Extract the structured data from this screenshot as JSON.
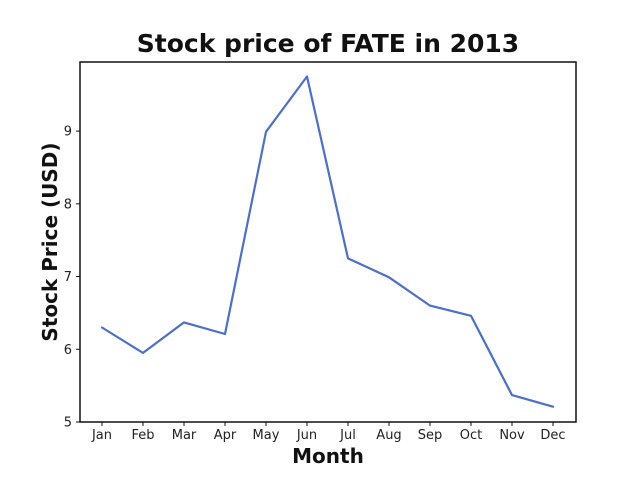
{
  "chart_data": {
    "type": "line",
    "title": "Stock price of FATE in 2013",
    "xlabel": "Month",
    "ylabel": "Stock Price (USD)",
    "categories": [
      "Jan",
      "Feb",
      "Mar",
      "Apr",
      "May",
      "Jun",
      "Jul",
      "Aug",
      "Sep",
      "Oct",
      "Nov",
      "Dec"
    ],
    "series": [
      {
        "values": [
          6.3,
          5.95,
          6.37,
          6.21,
          8.99,
          9.75,
          7.25,
          6.99,
          6.6,
          6.46,
          5.37,
          5.21
        ],
        "color": "#4a6fcf"
      }
    ],
    "yticks": [
      5,
      6,
      7,
      8,
      9
    ],
    "ylim": [
      5,
      9.95
    ],
    "grid": false,
    "legend": "none"
  }
}
